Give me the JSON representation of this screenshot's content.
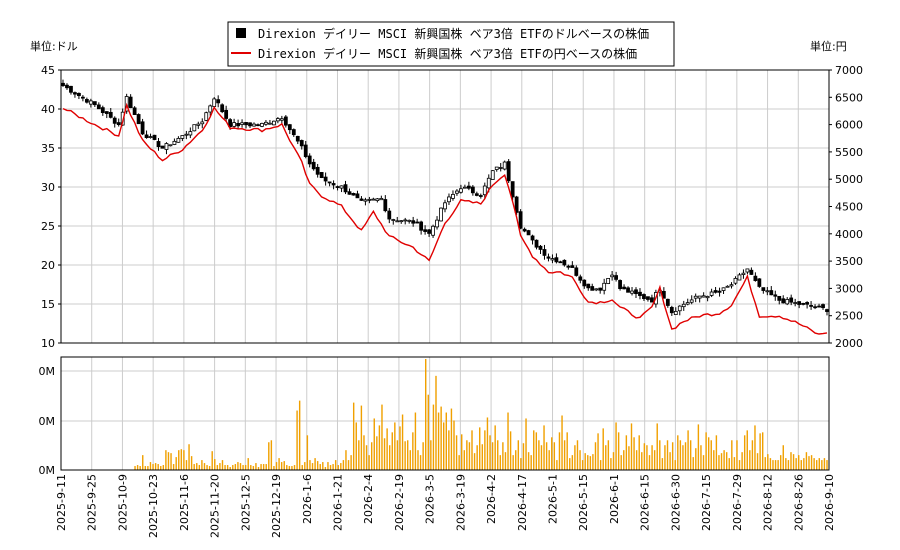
{
  "chart_data": {
    "type": "candlestick+line+bar",
    "legend": {
      "placement": "top-center",
      "entries": [
        {
          "name": "Direxion デイリー MSCI 新興国株 ベア3倍 ETFのドルベースの株価",
          "marker": "square",
          "color": "#000000"
        },
        {
          "name": "Direxion デイリー MSCI 新興国株 ベア3倍 ETFの円ベースの株価",
          "marker": "line",
          "color": "#e00000"
        }
      ]
    },
    "left_unit_label": "単位:ドル",
    "right_unit_label": "単位:円",
    "price_axis_left": {
      "range": [
        10,
        45
      ],
      "ticks": [
        "10",
        "15",
        "20",
        "25",
        "30",
        "35",
        "40",
        "45"
      ]
    },
    "price_axis_right": {
      "range": [
        2000,
        7000
      ],
      "ticks": [
        "2000",
        "2500",
        "3000",
        "3500",
        "4000",
        "4500",
        "5000",
        "5500",
        "6000",
        "6500",
        "7000"
      ]
    },
    "volume_axis": {
      "ticks": [
        "0M",
        "0M",
        "0M"
      ]
    },
    "x_ticks": [
      "2025-9-11",
      "2025-9-25",
      "2025-10-9",
      "2025-10-23",
      "2025-11-6",
      "2025-11-20",
      "2025-12-5",
      "2025-12-19",
      "2026-1-6",
      "2026-1-21",
      "2026-2-4",
      "2026-2-19",
      "2026-3-5",
      "2026-3-19",
      "2026-4-2",
      "2026-4-17",
      "2026-5-1",
      "2026-5-15",
      "2026-6-1",
      "2026-6-15",
      "2026-6-30",
      "2026-7-15",
      "2026-7-29",
      "2026-8-12",
      "2026-8-26",
      "2026-9-10"
    ],
    "grid": true,
    "dollar_close_keypoints": [
      [
        0,
        43
      ],
      [
        8,
        40.5
      ],
      [
        14,
        38
      ],
      [
        16,
        41.5
      ],
      [
        20,
        37
      ],
      [
        25,
        35
      ],
      [
        30,
        36.5
      ],
      [
        35,
        38.5
      ],
      [
        38,
        41.5
      ],
      [
        42,
        38
      ],
      [
        50,
        38
      ],
      [
        55,
        39
      ],
      [
        60,
        35
      ],
      [
        62,
        33
      ],
      [
        65,
        31
      ],
      [
        70,
        30
      ],
      [
        75,
        28
      ],
      [
        80,
        28.5
      ],
      [
        82,
        26
      ],
      [
        88,
        25.5
      ],
      [
        92,
        24
      ],
      [
        96,
        28
      ],
      [
        100,
        30
      ],
      [
        105,
        29
      ],
      [
        108,
        32
      ],
      [
        111,
        33
      ],
      [
        113,
        29
      ],
      [
        115,
        25
      ],
      [
        118,
        23
      ],
      [
        122,
        21
      ],
      [
        125,
        20.5
      ],
      [
        128,
        19.5
      ],
      [
        132,
        17
      ],
      [
        135,
        17
      ],
      [
        138,
        19
      ],
      [
        140,
        17
      ],
      [
        145,
        16
      ],
      [
        148,
        15.5
      ],
      [
        150,
        17
      ],
      [
        153,
        14
      ],
      [
        156,
        15
      ],
      [
        160,
        16
      ],
      [
        165,
        16.5
      ],
      [
        168,
        17.5
      ],
      [
        172,
        19.5
      ],
      [
        175,
        17
      ],
      [
        180,
        15.5
      ],
      [
        185,
        15
      ],
      [
        190,
        14.5
      ],
      [
        192,
        14.3
      ]
    ],
    "yen_close_keypoints": [
      [
        0,
        6300
      ],
      [
        8,
        6000
      ],
      [
        14,
        5800
      ],
      [
        16,
        6350
      ],
      [
        20,
        5700
      ],
      [
        25,
        5350
      ],
      [
        30,
        5550
      ],
      [
        35,
        5900
      ],
      [
        38,
        6300
      ],
      [
        42,
        5950
      ],
      [
        50,
        5900
      ],
      [
        55,
        6000
      ],
      [
        60,
        5300
      ],
      [
        62,
        4900
      ],
      [
        65,
        4700
      ],
      [
        70,
        4500
      ],
      [
        75,
        4050
      ],
      [
        78,
        4400
      ],
      [
        82,
        3950
      ],
      [
        88,
        3750
      ],
      [
        92,
        3500
      ],
      [
        96,
        4200
      ],
      [
        100,
        4600
      ],
      [
        105,
        4550
      ],
      [
        108,
        4900
      ],
      [
        111,
        5100
      ],
      [
        113,
        4600
      ],
      [
        115,
        3950
      ],
      [
        118,
        3600
      ],
      [
        122,
        3300
      ],
      [
        125,
        3300
      ],
      [
        128,
        3200
      ],
      [
        132,
        2750
      ],
      [
        135,
        2750
      ],
      [
        138,
        2800
      ],
      [
        140,
        2650
      ],
      [
        145,
        2450
      ],
      [
        148,
        2650
      ],
      [
        150,
        3000
      ],
      [
        153,
        2250
      ],
      [
        156,
        2400
      ],
      [
        160,
        2500
      ],
      [
        165,
        2550
      ],
      [
        168,
        2700
      ],
      [
        172,
        3200
      ],
      [
        175,
        2500
      ],
      [
        180,
        2500
      ],
      [
        185,
        2350
      ],
      [
        190,
        2150
      ],
      [
        192,
        2200
      ]
    ],
    "volume_relative": [
      0,
      0,
      0,
      0,
      0,
      0,
      0,
      0,
      0,
      0,
      0,
      0,
      0,
      0,
      0,
      0,
      0,
      0,
      0,
      0,
      0,
      0,
      0,
      0,
      0,
      0,
      0,
      0,
      0.04,
      0.05,
      0.04,
      0.15,
      0.04,
      0.04,
      0.08,
      0.06,
      0.07,
      0.06,
      0.04,
      0.05,
      0.2,
      0.18,
      0.17,
      0.06,
      0.13,
      0.2,
      0.21,
      0.2,
      0.1,
      0.26,
      0.14,
      0.06,
      0.07,
      0.05,
      0.1,
      0.07,
      0.05,
      0.04,
      0.19,
      0.11,
      0.05,
      0.07,
      0.1,
      0.05,
      0.05,
      0.03,
      0.05,
      0.06,
      0.08,
      0.07,
      0.05,
      0.05,
      0.12,
      0.05,
      0.04,
      0.07,
      0.03,
      0.06,
      0.06,
      0.06,
      0.28,
      0.3,
      0.04,
      0.08,
      0.12,
      0.08,
      0.09,
      0.05,
      0.04,
      0.04,
      0.05,
      0.6,
      0.7,
      0.05,
      0.08,
      0.35,
      0.1,
      0.07,
      0.12,
      0.09,
      0.06,
      0.08,
      0.03,
      0.08,
      0.05,
      0.06,
      0.1,
      0.05,
      0.07,
      0.1,
      0.2,
      0.1,
      0.15,
      0.68,
      0.48,
      0.3,
      0.65,
      0.35,
      0.25,
      0.15,
      0.28,
      0.52,
      0.34,
      0.45,
      0.66,
      0.32,
      0.42,
      0.25,
      0.38,
      0.48,
      0.3,
      0.44,
      0.56,
      0.29,
      0.3,
      0.2,
      0.38,
      0.58,
      0.2,
      0.15,
      0.28,
      1.12,
      0.76,
      0.3,
      0.66,
      0.95,
      0.58,
      0.64,
      0.48,
      0.58,
      0.4,
      0.62,
      0.5,
      0.35,
      0.15,
      0.36,
      0.2,
      0.3,
      0.28,
      0.4,
      0.17,
      0.25,
      0.43,
      0.26,
      0.4,
      0.53,
      0.35,
      0.28,
      0.45,
      0.3,
      0.15,
      0.28,
      0.18,
      0.58,
      0.39,
      0.15,
      0.2,
      0.3,
      0.12,
      0.27,
      0.52,
      0.18,
      0.15,
      0.4,
      0.38,
      0.3,
      0.25,
      0.45,
      0.28,
      0.2,
      0.33,
      0.28,
      0.1,
      0.38,
      0.55,
      0.3,
      0.38,
      0.12,
      0.15,
      0.25,
      0.3,
      0.2,
      0.1,
      0.17,
      0.15,
      0.14,
      0.16,
      0.28,
      0.37,
      0.1,
      0.42,
      0.25,
      0.3,
      0.12,
      0.18,
      0.48,
      0.38,
      0.15,
      0.2,
      0.35,
      0.24,
      0.47,
      0.33,
      0.2,
      0.35,
      0.18,
      0.27,
      0.25,
      0.15,
      0.25,
      0.2,
      0.47,
      0.3,
      0.12,
      0.25,
      0.3,
      0.18,
      0.28,
      0.1,
      0.35,
      0.3,
      0.25,
      0.28,
      0.4,
      0.3,
      0.13,
      0.22,
      0.46,
      0.25,
      0.15,
      0.38,
      0.33,
      0.3,
      0.2,
      0.35,
      0.15,
      0.17,
      0.2,
      0.18,
      0.12,
      0.3,
      0.13,
      0.3,
      0.1,
      0.18,
      0.35,
      0.4,
      0.2,
      0.3,
      0.45,
      0.17,
      0.37,
      0.38,
      0.13,
      0.16,
      0.12,
      0.1,
      0.1,
      0.1,
      0.15,
      0.25,
      0.12,
      0.1,
      0.18,
      0.16,
      0.12,
      0.15,
      0.1,
      0.12,
      0.18,
      0.14,
      0.15,
      0.12,
      0.1,
      0.12,
      0.1,
      0.12,
      0.1
    ]
  }
}
